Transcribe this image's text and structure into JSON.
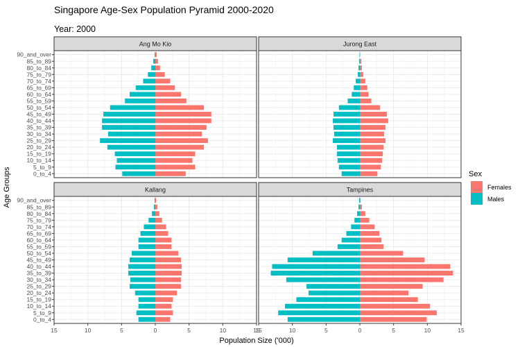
{
  "chart_data": {
    "type": "bar",
    "orientation": "horizontal-diverging",
    "title": "Singapore Age-Sex Population Pyramid 2000-2020",
    "subtitle": "Year: 2000",
    "xlabel": "Population Size ('000)",
    "ylabel": "Age Groups",
    "x_ticks": [
      "15",
      "10",
      "5",
      "0",
      "5",
      "10",
      "15"
    ],
    "x_tick_values": [
      -15,
      -10,
      -5,
      0,
      5,
      10,
      15
    ],
    "xlim": [
      -15,
      15
    ],
    "grid": true,
    "legend": {
      "title": "Sex",
      "placement": "right",
      "items": [
        {
          "label": "Females",
          "color": "#F8766D"
        },
        {
          "label": "Males",
          "color": "#00BFC4"
        }
      ]
    },
    "categories": [
      "0_to_4",
      "5_to_9",
      "10_to_14",
      "15_to_19",
      "20_to_24",
      "25_to_29",
      "30_to_34",
      "35_to_39",
      "40_to_44",
      "45_to_49",
      "50_to_54",
      "55_to_59",
      "60_to_64",
      "65_to_69",
      "70_to_74",
      "75_to_79",
      "80_to_84",
      "85_to_89",
      "90_and_over"
    ],
    "panels": [
      {
        "name": "Ang Mo Kio",
        "series": [
          {
            "name": "Males",
            "values": [
              4.9,
              5.9,
              5.7,
              6.0,
              7.1,
              8.2,
              7.0,
              7.9,
              7.9,
              7.7,
              6.7,
              4.5,
              3.8,
              2.9,
              1.8,
              1.1,
              0.6,
              0.3,
              0.1
            ]
          },
          {
            "name": "Females",
            "values": [
              4.5,
              5.9,
              5.5,
              5.9,
              7.2,
              7.8,
              6.9,
              7.6,
              8.3,
              8.3,
              7.2,
              4.6,
              3.8,
              2.9,
              2.2,
              1.4,
              0.7,
              0.4,
              0.2
            ]
          }
        ]
      },
      {
        "name": "Jurong East",
        "series": [
          {
            "name": "Males",
            "values": [
              2.7,
              3.1,
              3.3,
              3.4,
              3.4,
              4.0,
              3.8,
              3.9,
              4.0,
              3.9,
              3.1,
              1.8,
              1.2,
              0.9,
              0.6,
              0.3,
              0.2,
              0.1,
              0.05
            ]
          },
          {
            "name": "Females",
            "values": [
              2.6,
              3.1,
              3.3,
              3.4,
              3.5,
              3.8,
              3.6,
              3.8,
              4.2,
              4.0,
              3.0,
              1.7,
              1.3,
              1.1,
              0.8,
              0.5,
              0.3,
              0.2,
              0.05
            ]
          }
        ]
      },
      {
        "name": "Kallang",
        "series": [
          {
            "name": "Males",
            "values": [
              2.5,
              2.8,
              2.5,
              2.5,
              3.0,
              3.8,
              3.7,
              4.0,
              4.0,
              3.8,
              3.5,
              2.5,
              2.5,
              2.2,
              1.7,
              1.0,
              0.5,
              0.2,
              0.1
            ]
          },
          {
            "name": "Females",
            "values": [
              2.2,
              2.6,
              2.4,
              2.6,
              3.2,
              3.8,
              3.8,
              3.9,
              3.9,
              3.8,
              3.4,
              2.4,
              2.4,
              1.9,
              1.6,
              1.0,
              0.6,
              0.3,
              0.1
            ]
          }
        ]
      },
      {
        "name": "Tampines",
        "series": [
          {
            "name": "Males",
            "values": [
              10.7,
              12.1,
              11.1,
              9.4,
              7.6,
              7.9,
              10.9,
              13.2,
              13.0,
              10.7,
              7.0,
              3.3,
              2.7,
              2.0,
              1.3,
              0.8,
              0.4,
              0.2,
              0.1
            ]
          },
          {
            "name": "Females",
            "values": [
              9.9,
              11.4,
              10.4,
              8.6,
              7.2,
              9.3,
              12.4,
              13.8,
              13.4,
              9.6,
              6.4,
              3.5,
              3.2,
              2.9,
              2.2,
              1.4,
              0.8,
              0.3,
              0.1
            ]
          }
        ]
      }
    ]
  }
}
